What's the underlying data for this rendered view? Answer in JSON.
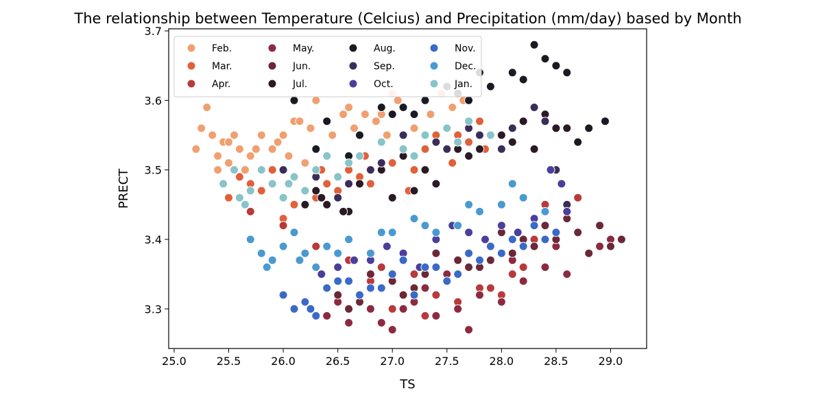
{
  "chart_data": {
    "type": "scatter",
    "title": "The relationship between Temperature (Celcius) and Precipitation (mm/day) based by Month",
    "xlabel": "TS",
    "ylabel": "PRECT",
    "xlim": [
      24.95,
      29.33
    ],
    "ylim": [
      3.243,
      3.703
    ],
    "x_ticks": [
      "25.0",
      "25.5",
      "26.0",
      "26.5",
      "27.0",
      "27.5",
      "28.0",
      "28.5",
      "29.0"
    ],
    "y_ticks": [
      "3.3",
      "3.4",
      "3.5",
      "3.6",
      "3.7"
    ],
    "grid": false,
    "legend_position": "top-left",
    "legend_columns": 4,
    "series": [
      {
        "name": "Feb.",
        "color": "#f0a070",
        "x": [
          25.2,
          25.3,
          25.35,
          25.4,
          25.45,
          25.5,
          25.55,
          25.6,
          25.7,
          25.75,
          25.8,
          25.9,
          25.95,
          26.0,
          26.05,
          26.1,
          26.2,
          26.3,
          26.45,
          26.55,
          26.65,
          26.75,
          26.85,
          26.95,
          27.05,
          27.2,
          27.35,
          27.45,
          27.55,
          27.65,
          25.25,
          25.5,
          25.65,
          26.15,
          26.6,
          27.0,
          27.5,
          25.4,
          26.25,
          26.9
        ],
        "y": [
          3.53,
          3.59,
          3.55,
          3.52,
          3.54,
          3.51,
          3.55,
          3.53,
          3.52,
          3.53,
          3.55,
          3.53,
          3.54,
          3.55,
          3.52,
          3.57,
          3.51,
          3.6,
          3.55,
          3.58,
          3.56,
          3.58,
          3.57,
          3.55,
          3.6,
          3.56,
          3.58,
          3.61,
          3.59,
          3.6,
          3.56,
          3.54,
          3.5,
          3.57,
          3.59,
          3.61,
          3.62,
          3.5,
          3.56,
          3.58
        ]
      },
      {
        "name": "Mar.",
        "color": "#e0603a",
        "x": [
          25.5,
          25.6,
          25.7,
          25.8,
          25.9,
          26.0,
          26.1,
          26.2,
          26.3,
          26.4,
          26.5,
          26.6,
          26.7,
          26.8,
          26.9,
          27.0,
          27.1,
          27.2,
          27.3,
          27.4,
          27.5,
          27.6,
          27.7,
          27.8,
          27.9,
          26.35,
          26.75,
          27.15,
          27.55,
          27.85
        ],
        "y": [
          3.46,
          3.49,
          3.48,
          3.47,
          3.5,
          3.43,
          3.45,
          3.47,
          3.46,
          3.48,
          3.47,
          3.5,
          3.49,
          3.48,
          3.5,
          3.51,
          3.52,
          3.5,
          3.53,
          3.55,
          3.53,
          3.55,
          3.54,
          3.57,
          3.55,
          3.5,
          3.52,
          3.47,
          3.51,
          3.53
        ]
      },
      {
        "name": "Apr.",
        "color": "#b83a3a",
        "x": [
          25.7,
          26.0,
          26.3,
          26.6,
          26.9,
          27.2,
          27.5,
          27.8,
          28.1,
          28.4,
          28.7,
          26.2,
          26.8,
          27.4,
          28.0,
          28.5,
          27.0,
          27.6,
          28.2,
          28.8,
          26.5,
          27.3,
          27.9,
          28.3
        ],
        "y": [
          3.44,
          3.42,
          3.39,
          3.37,
          3.36,
          3.35,
          3.34,
          3.33,
          3.35,
          3.45,
          3.46,
          3.38,
          3.34,
          3.32,
          3.32,
          3.5,
          3.3,
          3.31,
          3.36,
          3.38,
          3.32,
          3.29,
          3.33,
          3.4
        ]
      },
      {
        "name": "May.",
        "color": "#8c2a40",
        "x": [
          26.4,
          26.6,
          26.8,
          27.0,
          27.2,
          27.4,
          27.6,
          27.8,
          28.0,
          28.2,
          28.4,
          28.6,
          28.8,
          29.0,
          26.5,
          26.9,
          27.3,
          27.7,
          28.1,
          28.5,
          28.9,
          26.7,
          27.1,
          27.5
        ],
        "y": [
          3.29,
          3.28,
          3.3,
          3.27,
          3.31,
          3.29,
          3.3,
          3.32,
          3.31,
          3.34,
          3.36,
          3.35,
          3.38,
          3.4,
          3.31,
          3.28,
          3.33,
          3.27,
          3.37,
          3.39,
          3.39,
          3.32,
          3.3,
          3.35
        ]
      },
      {
        "name": "Jun.",
        "color": "#6a2838",
        "x": [
          26.5,
          26.7,
          26.9,
          27.1,
          27.3,
          27.5,
          27.7,
          27.9,
          28.1,
          28.3,
          28.5,
          28.7,
          28.9,
          29.1,
          26.6,
          27.0,
          27.4,
          27.8,
          28.2,
          28.6,
          29.0,
          26.8,
          27.2,
          27.6,
          28.0,
          28.4,
          28.8
        ],
        "y": [
          3.32,
          3.31,
          3.33,
          3.32,
          3.35,
          3.34,
          3.36,
          3.37,
          3.38,
          3.39,
          3.4,
          3.41,
          3.42,
          3.4,
          3.3,
          3.34,
          3.38,
          3.36,
          3.4,
          3.43,
          3.39,
          3.35,
          3.33,
          3.37,
          3.41,
          3.42,
          3.38
        ]
      },
      {
        "name": "Jul.",
        "color": "#2a1a24",
        "x": [
          26.1,
          26.3,
          26.5,
          26.7,
          26.9,
          27.1,
          27.3,
          27.5,
          27.7,
          27.9,
          28.1,
          28.3,
          28.5,
          28.7,
          26.2,
          26.6,
          27.0,
          27.4,
          27.8,
          28.2,
          28.6,
          26.4,
          26.8,
          27.2,
          27.6,
          28.0,
          28.4,
          26.35,
          26.55
        ],
        "y": [
          3.49,
          3.47,
          3.46,
          3.48,
          3.5,
          3.52,
          3.5,
          3.53,
          3.52,
          3.55,
          3.54,
          3.53,
          3.56,
          3.54,
          3.45,
          3.44,
          3.46,
          3.48,
          3.53,
          3.57,
          3.56,
          3.45,
          3.5,
          3.47,
          3.53,
          3.55,
          3.58,
          3.46,
          3.44
        ]
      },
      {
        "name": "Aug.",
        "color": "#1a1a22",
        "x": [
          26.1,
          26.4,
          26.7,
          27.0,
          27.3,
          27.6,
          27.9,
          28.2,
          28.5,
          28.8,
          26.3,
          26.9,
          27.5,
          28.1,
          28.7,
          26.6,
          27.2,
          27.8,
          28.4,
          28.95,
          27.1,
          27.7,
          28.3,
          28.6
        ],
        "y": [
          3.6,
          3.57,
          3.55,
          3.58,
          3.6,
          3.61,
          3.62,
          3.63,
          3.65,
          3.56,
          3.53,
          3.59,
          3.62,
          3.64,
          3.54,
          3.52,
          3.58,
          3.64,
          3.66,
          3.57,
          3.59,
          3.6,
          3.68,
          3.64
        ]
      },
      {
        "name": "Sep.",
        "color": "#3a2d5a",
        "x": [
          26.0,
          26.3,
          26.6,
          26.9,
          27.2,
          27.5,
          27.8,
          28.1,
          28.4,
          26.2,
          26.8,
          27.4,
          28.0,
          28.5,
          26.5,
          27.1,
          27.7,
          28.3,
          28.6
        ],
        "y": [
          3.5,
          3.49,
          3.48,
          3.51,
          3.52,
          3.53,
          3.55,
          3.56,
          3.57,
          3.47,
          3.5,
          3.54,
          3.53,
          3.5,
          3.46,
          3.55,
          3.56,
          3.59,
          3.45
        ]
      },
      {
        "name": "Oct.",
        "color": "#4a3f9a",
        "x": [
          26.2,
          26.5,
          26.8,
          27.1,
          27.4,
          27.7,
          28.0,
          28.3,
          28.6,
          26.35,
          26.95,
          27.55,
          28.15,
          28.45,
          26.65,
          27.25,
          27.85,
          28.55
        ],
        "y": [
          3.38,
          3.36,
          3.37,
          3.38,
          3.4,
          3.41,
          3.42,
          3.43,
          3.44,
          3.35,
          3.39,
          3.42,
          3.41,
          3.5,
          3.37,
          3.36,
          3.4,
          3.48
        ]
      },
      {
        "name": "Nov.",
        "color": "#3a6ac8",
        "x": [
          26.0,
          26.2,
          26.4,
          26.6,
          26.8,
          27.0,
          27.2,
          27.4,
          27.6,
          27.8,
          28.0,
          28.2,
          28.4,
          26.1,
          26.5,
          26.9,
          27.3,
          27.7,
          28.1,
          28.5,
          26.3,
          26.7,
          27.1,
          27.5,
          27.9,
          28.3,
          26.25
        ],
        "y": [
          3.32,
          3.31,
          3.33,
          3.34,
          3.33,
          3.35,
          3.32,
          3.36,
          3.35,
          3.37,
          3.38,
          3.39,
          3.4,
          3.3,
          3.34,
          3.33,
          3.36,
          3.38,
          3.4,
          3.41,
          3.29,
          3.32,
          3.37,
          3.34,
          3.39,
          3.42,
          3.3
        ]
      },
      {
        "name": "Dec.",
        "color": "#4a9ad0",
        "x": [
          25.7,
          25.8,
          25.9,
          26.0,
          26.1,
          26.2,
          26.3,
          26.4,
          26.6,
          26.8,
          27.0,
          27.2,
          27.4,
          27.6,
          27.8,
          28.0,
          28.2,
          28.4,
          26.5,
          26.9,
          27.3,
          27.7,
          28.1,
          25.85,
          26.15
        ],
        "y": [
          3.4,
          3.38,
          3.37,
          3.39,
          3.41,
          3.38,
          3.36,
          3.39,
          3.4,
          3.38,
          3.41,
          3.43,
          3.41,
          3.42,
          3.44,
          3.45,
          3.46,
          3.44,
          3.38,
          3.41,
          3.42,
          3.45,
          3.48,
          3.36,
          3.37
        ]
      },
      {
        "name": "Jan.",
        "color": "#88c4c8",
        "x": [
          25.45,
          25.55,
          25.6,
          25.7,
          25.8,
          25.9,
          26.0,
          26.1,
          26.2,
          26.3,
          26.4,
          26.5,
          26.7,
          26.9,
          27.1,
          27.3,
          27.5,
          27.7,
          27.9,
          25.65,
          26.05,
          26.6,
          27.2,
          27.6
        ],
        "y": [
          3.48,
          3.5,
          3.46,
          3.47,
          3.5,
          3.48,
          3.46,
          3.49,
          3.47,
          3.5,
          3.52,
          3.49,
          3.52,
          3.54,
          3.53,
          3.55,
          3.56,
          3.57,
          3.55,
          3.45,
          3.48,
          3.51,
          3.52,
          3.54
        ]
      }
    ]
  }
}
